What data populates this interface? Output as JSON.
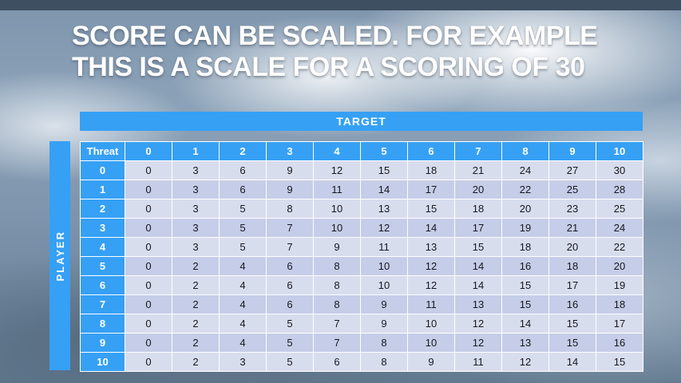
{
  "title": {
    "line1": "SCORE CAN BE SCALED. FOR EXAMPLE",
    "line2": "THIS IS A SCALE FOR A SCORING OF 30"
  },
  "table": {
    "target_label": "TARGET",
    "player_label": "PLAYER",
    "threat_label": "Threat",
    "columns": [
      "0",
      "1",
      "2",
      "3",
      "4",
      "5",
      "6",
      "7",
      "8",
      "9",
      "10"
    ],
    "rows": [
      {
        "threat": "0",
        "values": [
          0,
          3,
          6,
          9,
          12,
          15,
          18,
          21,
          24,
          27,
          30
        ]
      },
      {
        "threat": "1",
        "values": [
          0,
          3,
          6,
          9,
          11,
          14,
          17,
          20,
          22,
          25,
          28
        ]
      },
      {
        "threat": "2",
        "values": [
          0,
          3,
          5,
          8,
          10,
          13,
          15,
          18,
          20,
          23,
          25
        ]
      },
      {
        "threat": "3",
        "values": [
          0,
          3,
          5,
          7,
          10,
          12,
          14,
          17,
          19,
          21,
          24
        ]
      },
      {
        "threat": "4",
        "values": [
          0,
          3,
          5,
          7,
          9,
          11,
          13,
          15,
          18,
          20,
          22
        ]
      },
      {
        "threat": "5",
        "values": [
          0,
          2,
          4,
          6,
          8,
          10,
          12,
          14,
          16,
          18,
          20
        ]
      },
      {
        "threat": "6",
        "values": [
          0,
          2,
          4,
          6,
          8,
          10,
          12,
          14,
          15,
          17,
          19
        ]
      },
      {
        "threat": "7",
        "values": [
          0,
          2,
          4,
          6,
          8,
          9,
          11,
          13,
          15,
          16,
          18
        ]
      },
      {
        "threat": "8",
        "values": [
          0,
          2,
          4,
          5,
          7,
          9,
          10,
          12,
          14,
          15,
          17
        ]
      },
      {
        "threat": "9",
        "values": [
          0,
          2,
          4,
          5,
          7,
          8,
          10,
          12,
          13,
          15,
          16
        ]
      },
      {
        "threat": "10",
        "values": [
          0,
          2,
          3,
          5,
          6,
          8,
          9,
          11,
          12,
          14,
          15
        ]
      }
    ]
  },
  "colors": {
    "accent_blue": "#36A0F5",
    "row_light": "#D8DDEE",
    "row_dark": "#C5CDE8",
    "top_strip": "#3E4F61"
  }
}
